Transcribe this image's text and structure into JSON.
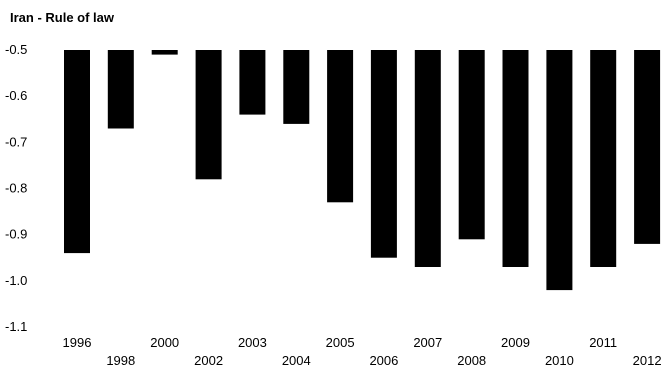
{
  "chart_data": {
    "type": "bar",
    "title": "Iran - Rule of law",
    "xlabel": "",
    "ylabel": "",
    "categories": [
      "1996",
      "1998",
      "2000",
      "2002",
      "2003",
      "2004",
      "2005",
      "2006",
      "2007",
      "2008",
      "2009",
      "2010",
      "2011",
      "2012"
    ],
    "values": [
      -0.94,
      -0.67,
      -0.51,
      -0.78,
      -0.64,
      -0.66,
      -0.83,
      -0.95,
      -0.97,
      -0.91,
      -0.97,
      -1.02,
      -0.97,
      -0.92
    ],
    "ylim": [
      -1.1,
      -0.5
    ],
    "y_ticks": [
      "-0.5",
      "-0.6",
      "-0.7",
      "-0.8",
      "-0.9",
      "-1.0",
      "-1.1"
    ],
    "grid": false,
    "bar_color": "#000000"
  }
}
